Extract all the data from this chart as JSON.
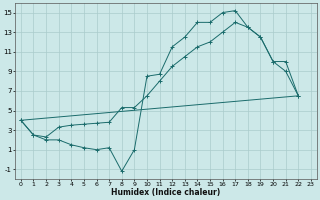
{
  "xlabel": "Humidex (Indice chaleur)",
  "xlim": [
    -0.5,
    23.5
  ],
  "ylim": [
    -2.0,
    16.0
  ],
  "yticks": [
    -1,
    1,
    3,
    5,
    7,
    9,
    11,
    13,
    15
  ],
  "xticks": [
    0,
    1,
    2,
    3,
    4,
    5,
    6,
    7,
    8,
    9,
    10,
    11,
    12,
    13,
    14,
    15,
    16,
    17,
    18,
    19,
    20,
    21,
    22,
    23
  ],
  "bg_color": "#cce8e8",
  "line_color": "#1a6b6b",
  "grid_color": "#aacccc",
  "line1_x": [
    0,
    1,
    2,
    3,
    4,
    5,
    6,
    7,
    8,
    9,
    10,
    11,
    12,
    13,
    14,
    15,
    16,
    17,
    18,
    19,
    20,
    21,
    22
  ],
  "line1_y": [
    4.0,
    2.5,
    2.0,
    2.0,
    1.5,
    1.2,
    1.0,
    1.2,
    -1.2,
    1.0,
    8.5,
    8.7,
    11.5,
    12.5,
    14.0,
    14.0,
    15.0,
    15.2,
    13.5,
    12.5,
    10.0,
    9.0,
    6.5
  ],
  "line2_x": [
    0,
    1,
    2,
    3,
    4,
    5,
    6,
    7,
    8,
    9,
    10,
    11,
    12,
    13,
    14,
    15,
    16,
    17,
    18,
    19,
    20,
    21,
    22
  ],
  "line2_y": [
    4.0,
    2.5,
    2.3,
    3.3,
    3.5,
    3.6,
    3.7,
    3.8,
    5.3,
    5.3,
    6.5,
    8.0,
    9.5,
    10.5,
    11.5,
    12.0,
    13.0,
    14.0,
    13.5,
    12.5,
    10.0,
    10.0,
    6.5
  ],
  "line3_x": [
    0,
    22
  ],
  "line3_y": [
    4.0,
    6.5
  ],
  "marker": "+"
}
